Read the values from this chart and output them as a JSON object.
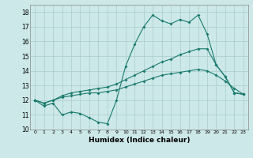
{
  "title": "",
  "xlabel": "Humidex (Indice chaleur)",
  "background_color": "#cce8e8",
  "grid_color": "#aacccc",
  "line_color": "#1a7a6e",
  "xlim": [
    -0.5,
    23.5
  ],
  "ylim": [
    10,
    18.5
  ],
  "xticks": [
    0,
    1,
    2,
    3,
    4,
    5,
    6,
    7,
    8,
    9,
    10,
    11,
    12,
    13,
    14,
    15,
    16,
    17,
    18,
    19,
    20,
    21,
    22,
    23
  ],
  "yticks": [
    10,
    11,
    12,
    13,
    14,
    15,
    16,
    17,
    18
  ],
  "line1_x": [
    0,
    1,
    2,
    3,
    4,
    5,
    6,
    7,
    8,
    9,
    10,
    11,
    12,
    13,
    14,
    15,
    16,
    17,
    18,
    19,
    20,
    21,
    22,
    23
  ],
  "line1_y": [
    12.0,
    11.6,
    11.8,
    11.0,
    11.2,
    11.1,
    10.8,
    10.5,
    10.4,
    12.0,
    14.3,
    15.8,
    17.0,
    17.8,
    17.4,
    17.2,
    17.5,
    17.3,
    17.8,
    16.5,
    14.4,
    13.6,
    12.5,
    12.4
  ],
  "line2_x": [
    0,
    1,
    2,
    3,
    4,
    5,
    6,
    7,
    8,
    9,
    10,
    11,
    12,
    13,
    14,
    15,
    16,
    17,
    18,
    19,
    20,
    21,
    22,
    23
  ],
  "line2_y": [
    12.0,
    11.8,
    12.0,
    12.3,
    12.5,
    12.6,
    12.7,
    12.8,
    12.9,
    13.1,
    13.4,
    13.7,
    14.0,
    14.3,
    14.6,
    14.8,
    15.1,
    15.3,
    15.5,
    15.5,
    14.4,
    13.6,
    12.5,
    12.4
  ],
  "line3_x": [
    0,
    1,
    2,
    3,
    4,
    5,
    6,
    7,
    8,
    9,
    10,
    11,
    12,
    13,
    14,
    15,
    16,
    17,
    18,
    19,
    20,
    21,
    22,
    23
  ],
  "line3_y": [
    12.0,
    11.8,
    12.0,
    12.2,
    12.3,
    12.4,
    12.5,
    12.5,
    12.6,
    12.7,
    12.9,
    13.1,
    13.3,
    13.5,
    13.7,
    13.8,
    13.9,
    14.0,
    14.1,
    14.0,
    13.7,
    13.3,
    12.8,
    12.4
  ]
}
